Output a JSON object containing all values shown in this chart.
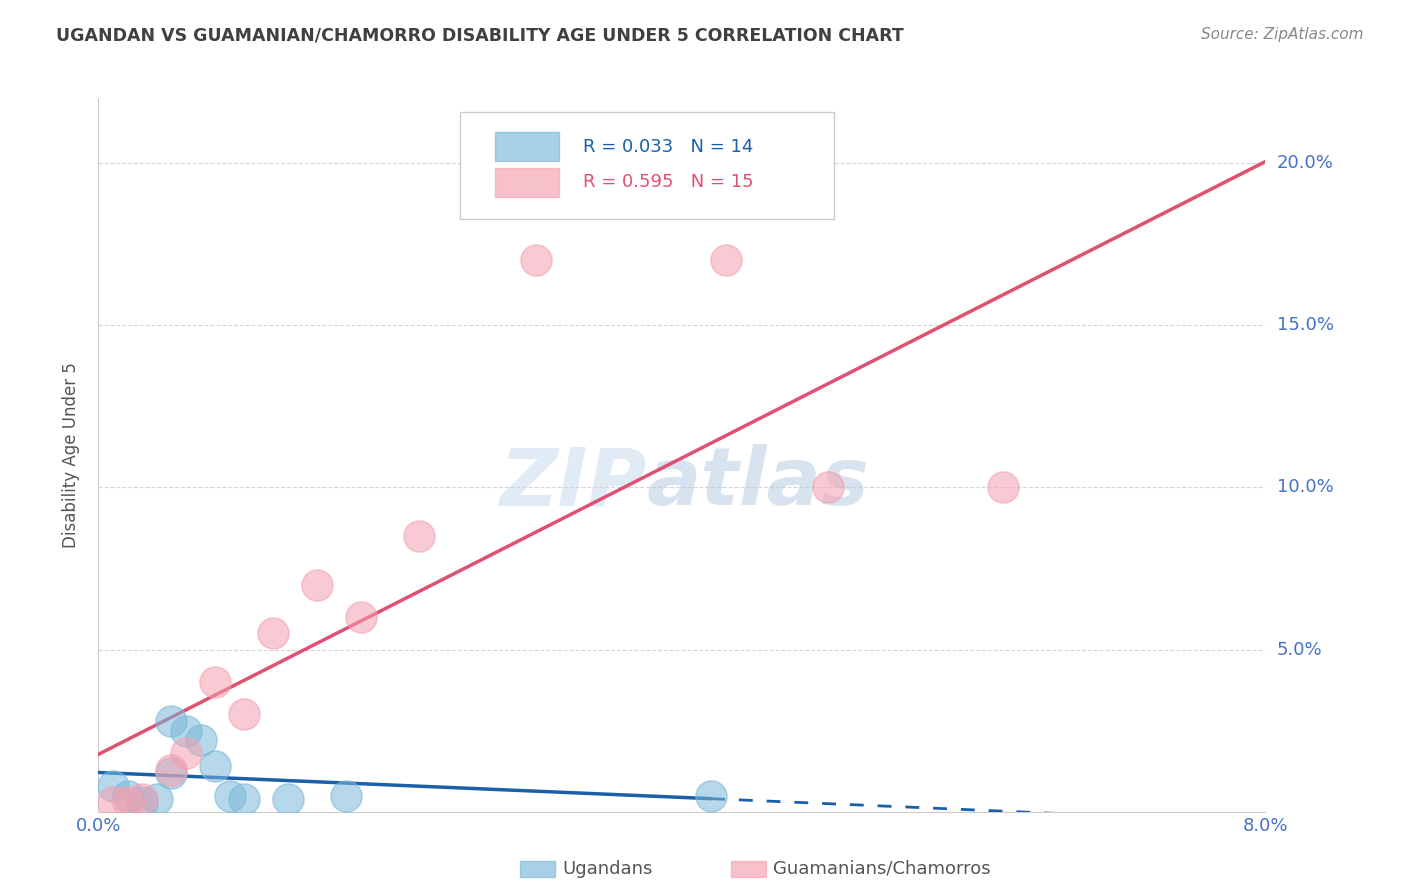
{
  "title": "UGANDAN VS GUAMANIAN/CHAMORRO DISABILITY AGE UNDER 5 CORRELATION CHART",
  "source": "Source: ZipAtlas.com",
  "ylabel": "Disability Age Under 5",
  "xlim": [
    0.0,
    0.08
  ],
  "ylim": [
    0.0,
    0.22
  ],
  "xticks": [
    0.0,
    0.02,
    0.04,
    0.06,
    0.08
  ],
  "xtick_labels": [
    "0.0%",
    "",
    "",
    "",
    "8.0%"
  ],
  "yticks": [
    0.0,
    0.05,
    0.1,
    0.15,
    0.2
  ],
  "ytick_labels": [
    "",
    "5.0%",
    "10.0%",
    "15.0%",
    "20.0%"
  ],
  "ugandan_x": [
    0.001,
    0.002,
    0.003,
    0.004,
    0.005,
    0.006,
    0.007,
    0.008,
    0.009,
    0.01,
    0.013,
    0.017,
    0.042,
    0.005
  ],
  "ugandan_y": [
    0.008,
    0.005,
    0.003,
    0.004,
    0.028,
    0.025,
    0.022,
    0.014,
    0.005,
    0.004,
    0.004,
    0.005,
    0.005,
    0.012
  ],
  "guamanian_x": [
    0.001,
    0.002,
    0.003,
    0.005,
    0.006,
    0.008,
    0.01,
    0.012,
    0.015,
    0.018,
    0.022,
    0.03,
    0.043,
    0.05,
    0.062
  ],
  "guamanian_y": [
    0.003,
    0.003,
    0.004,
    0.013,
    0.018,
    0.04,
    0.03,
    0.055,
    0.07,
    0.06,
    0.085,
    0.17,
    0.17,
    0.1,
    0.1
  ],
  "ugandan_color": "#7ab8d9",
  "guamanian_color": "#f4a0b0",
  "ugandan_line_color": "#1a5fa8",
  "guamanian_line_color": "#e05070",
  "ugandan_R": 0.033,
  "ugandan_N": 14,
  "guamanian_R": 0.595,
  "guamanian_N": 15,
  "legend_labels": [
    "Ugandans",
    "Guamanians/Chamorros"
  ],
  "watermark_zip": "ZIP",
  "watermark_atlas": "atlas",
  "background_color": "#ffffff",
  "grid_color": "#cccccc",
  "tick_label_color": "#4472c4",
  "title_color": "#404040",
  "ylabel_color": "#555555",
  "source_color": "#888888"
}
